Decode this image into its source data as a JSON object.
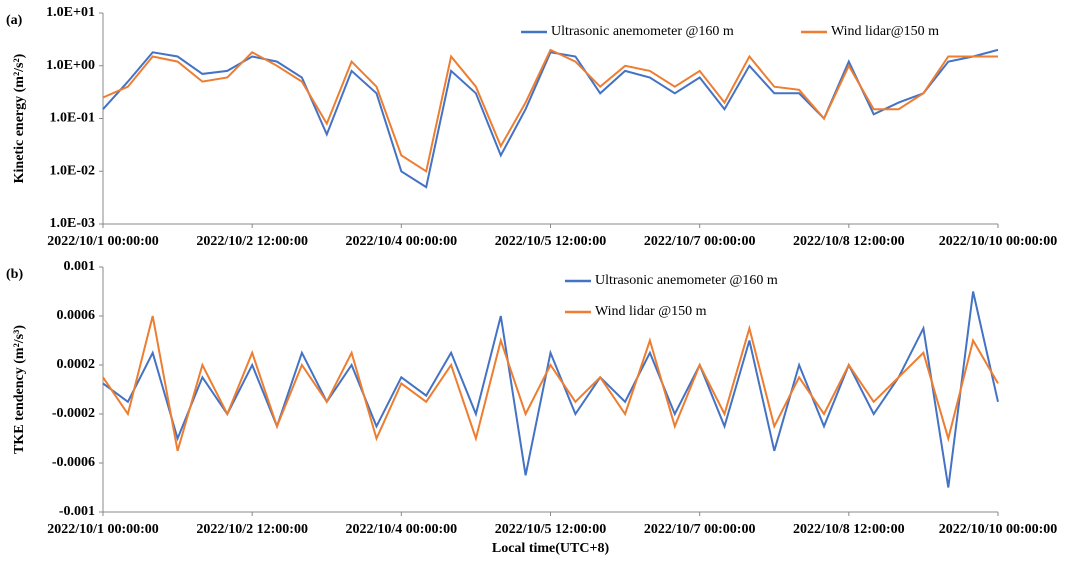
{
  "chart_data": [
    {
      "type": "line",
      "panel_label": "(a)",
      "y_label": "Kinetic energy (m²/s²)",
      "log_scale": true,
      "x": [
        "2022/10/1 00:00:00",
        "2022/10/1 06:00:00",
        "2022/10/1 12:00:00",
        "2022/10/1 18:00:00",
        "2022/10/2 00:00:00",
        "2022/10/2 06:00:00",
        "2022/10/2 12:00:00",
        "2022/10/2 18:00:00",
        "2022/10/3 00:00:00",
        "2022/10/3 06:00:00",
        "2022/10/3 12:00:00",
        "2022/10/3 18:00:00",
        "2022/10/4 00:00:00",
        "2022/10/4 06:00:00",
        "2022/10/4 12:00:00",
        "2022/10/4 18:00:00",
        "2022/10/5 00:00:00",
        "2022/10/5 06:00:00",
        "2022/10/5 12:00:00",
        "2022/10/5 18:00:00",
        "2022/10/6 00:00:00",
        "2022/10/6 06:00:00",
        "2022/10/6 12:00:00",
        "2022/10/6 18:00:00",
        "2022/10/7 00:00:00",
        "2022/10/7 06:00:00",
        "2022/10/7 12:00:00",
        "2022/10/7 18:00:00",
        "2022/10/8 00:00:00",
        "2022/10/8 06:00:00",
        "2022/10/8 12:00:00",
        "2022/10/8 18:00:00",
        "2022/10/9 00:00:00",
        "2022/10/9 06:00:00",
        "2022/10/9 12:00:00",
        "2022/10/9 18:00:00",
        "2022/10/10 00:00:00"
      ],
      "xlim": [
        "2022/10/1 00:00:00",
        "2022/10/10 00:00:00"
      ],
      "xticks": [
        "2022/10/1 00:00:00",
        "2022/10/2 12:00:00",
        "2022/10/4 00:00:00",
        "2022/10/5 12:00:00",
        "2022/10/7 00:00:00",
        "2022/10/8 12:00:00",
        "2022/10/10 00:00:00"
      ],
      "ylim": [
        0.001,
        10
      ],
      "yticks": [
        {
          "value": 0.001,
          "label": "1.0E-03"
        },
        {
          "value": 0.01,
          "label": "1.0E-02"
        },
        {
          "value": 0.1,
          "label": "1.0E-01"
        },
        {
          "value": 1,
          "label": "1.0E+00"
        },
        {
          "value": 10,
          "label": "1.0E+01"
        }
      ],
      "legend": "top-right-row",
      "series": [
        {
          "name": "Ultrasonic anemometer @160 m",
          "color": "#4472c4",
          "values": [
            0.15,
            0.5,
            1.8,
            1.5,
            0.7,
            0.8,
            1.5,
            1.2,
            0.6,
            0.05,
            0.8,
            0.3,
            0.01,
            0.005,
            0.8,
            0.3,
            0.02,
            0.15,
            1.8,
            1.5,
            0.3,
            0.8,
            0.6,
            0.3,
            0.6,
            0.15,
            1.0,
            0.3,
            0.3,
            0.1,
            1.2,
            0.12,
            0.2,
            0.3,
            1.2,
            1.5,
            2.0
          ]
        },
        {
          "name": "Wind lidar@150 m",
          "color": "#ed7d31",
          "values": [
            0.25,
            0.4,
            1.5,
            1.2,
            0.5,
            0.6,
            1.8,
            1.0,
            0.5,
            0.08,
            1.2,
            0.4,
            0.02,
            0.01,
            1.5,
            0.4,
            0.03,
            0.2,
            2.0,
            1.2,
            0.4,
            1.0,
            0.8,
            0.4,
            0.8,
            0.2,
            1.5,
            0.4,
            0.35,
            0.1,
            1.0,
            0.15,
            0.15,
            0.3,
            1.5,
            1.5,
            1.5
          ]
        }
      ]
    },
    {
      "type": "line",
      "panel_label": "(b)",
      "y_label": "TKE tendency (m²/s³)",
      "x_label": "Local time(UTC+8)",
      "log_scale": false,
      "x": [
        "2022/10/1 00:00:00",
        "2022/10/1 06:00:00",
        "2022/10/1 12:00:00",
        "2022/10/1 18:00:00",
        "2022/10/2 00:00:00",
        "2022/10/2 06:00:00",
        "2022/10/2 12:00:00",
        "2022/10/2 18:00:00",
        "2022/10/3 00:00:00",
        "2022/10/3 06:00:00",
        "2022/10/3 12:00:00",
        "2022/10/3 18:00:00",
        "2022/10/4 00:00:00",
        "2022/10/4 06:00:00",
        "2022/10/4 12:00:00",
        "2022/10/4 18:00:00",
        "2022/10/5 00:00:00",
        "2022/10/5 06:00:00",
        "2022/10/5 12:00:00",
        "2022/10/5 18:00:00",
        "2022/10/6 00:00:00",
        "2022/10/6 06:00:00",
        "2022/10/6 12:00:00",
        "2022/10/6 18:00:00",
        "2022/10/7 00:00:00",
        "2022/10/7 06:00:00",
        "2022/10/7 12:00:00",
        "2022/10/7 18:00:00",
        "2022/10/8 00:00:00",
        "2022/10/8 06:00:00",
        "2022/10/8 12:00:00",
        "2022/10/8 18:00:00",
        "2022/10/9 00:00:00",
        "2022/10/9 06:00:00",
        "2022/10/9 12:00:00",
        "2022/10/9 18:00:00",
        "2022/10/10 00:00:00"
      ],
      "xlim": [
        "2022/10/1 00:00:00",
        "2022/10/10 00:00:00"
      ],
      "xticks": [
        "2022/10/1 00:00:00",
        "2022/10/2 12:00:00",
        "2022/10/4 00:00:00",
        "2022/10/5 12:00:00",
        "2022/10/7 00:00:00",
        "2022/10/8 12:00:00",
        "2022/10/10 00:00:00"
      ],
      "ylim": [
        -0.001,
        0.001
      ],
      "yticks": [
        -0.001,
        -0.0006,
        -0.0002,
        0.0002,
        0.0006,
        0.001
      ],
      "legend": "top-center-column",
      "series": [
        {
          "name": "Ultrasonic anemometer @160 m",
          "color": "#4472c4",
          "values": [
            5e-05,
            -0.0001,
            0.0003,
            -0.0004,
            0.0001,
            -0.0002,
            0.0002,
            -0.0003,
            0.0003,
            -0.0001,
            0.0002,
            -0.0003,
            0.0001,
            -5e-05,
            0.0003,
            -0.0002,
            0.0006,
            -0.0007,
            0.0003,
            -0.0002,
            0.0001,
            -0.0001,
            0.0003,
            -0.0002,
            0.0002,
            -0.0003,
            0.0004,
            -0.0005,
            0.0002,
            -0.0003,
            0.0002,
            -0.0002,
            0.0001,
            0.0005,
            -0.0008,
            0.0008,
            -0.0001
          ]
        },
        {
          "name": "Wind lidar @150 m",
          "color": "#ed7d31",
          "values": [
            0.0001,
            -0.0002,
            0.0006,
            -0.0005,
            0.0002,
            -0.0002,
            0.0003,
            -0.0003,
            0.0002,
            -0.0001,
            0.0003,
            -0.0004,
            5e-05,
            -0.0001,
            0.0002,
            -0.0004,
            0.0004,
            -0.0002,
            0.0002,
            -0.0001,
            0.0001,
            -0.0002,
            0.0004,
            -0.0003,
            0.0002,
            -0.0002,
            0.0005,
            -0.0003,
            0.0001,
            -0.0002,
            0.0002,
            -0.0001,
            0.0001,
            0.0003,
            -0.0004,
            0.0004,
            5e-05
          ]
        }
      ]
    }
  ]
}
